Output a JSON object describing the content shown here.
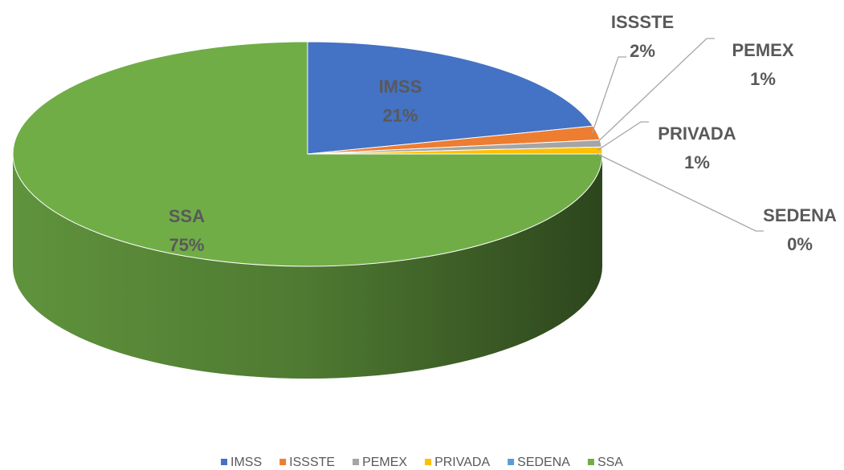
{
  "chart_data": {
    "type": "pie",
    "categories": [
      "IMSS",
      "ISSSTE",
      "PEMEX",
      "PRIVADA",
      "SEDENA",
      "SSA"
    ],
    "values": [
      21,
      2,
      1,
      1,
      0,
      75
    ],
    "value_labels": [
      "21%",
      "2%",
      "1%",
      "1%",
      "0%",
      "75%"
    ],
    "colors": [
      "#4472c4",
      "#ed7d31",
      "#a5a5a5",
      "#ffc000",
      "#5b9bd5",
      "#70ad47"
    ],
    "legend": "bottom"
  }
}
